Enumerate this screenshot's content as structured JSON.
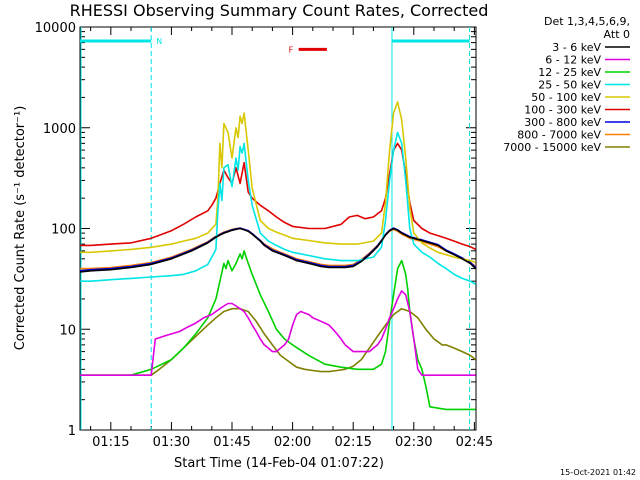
{
  "chart_data": {
    "type": "line",
    "title": "RHESSI Observing Summary Count Rates, Corrected",
    "xlabel": "Start Time (14-Feb-04 01:07:22)",
    "ylabel": "Corrected Count Rate (s⁻¹ detector⁻¹)",
    "y_scale": "log",
    "ylim": [
      1,
      10000
    ],
    "xlim_minutes": [
      67.37,
      165.4
    ],
    "x_tick_labels": [
      "01:15",
      "01:30",
      "01:45",
      "02:00",
      "02:15",
      "02:30",
      "02:45"
    ],
    "x_tick_minutes": [
      75,
      90,
      105,
      120,
      135,
      150,
      165
    ],
    "y_tick_labels": [
      "1",
      "10",
      "100",
      "1000",
      "10000"
    ],
    "y_tick_values": [
      1,
      10,
      100,
      1000,
      10000
    ],
    "legend_header": [
      "Det 1,3,4,5,6,9,",
      "Att 0"
    ],
    "legend_position": "right",
    "annotations": {
      "night_marker": "N",
      "flare_marker": "F",
      "night_color": "#00e5e5",
      "flare_color": "#e00000",
      "night_bars_minutes": [
        [
          67.37,
          85.0
        ],
        [
          144.6,
          163.8
        ]
      ],
      "night_boundaries_minutes": [
        85.0,
        144.6,
        163.8
      ],
      "flare_bar_minutes": [
        121.5,
        128.5
      ],
      "flare_bar_y": 6000
    },
    "series": [
      {
        "name": "3 - 6 keV",
        "color": "#000000",
        "x": [
          67.4,
          70,
          75,
          80,
          85,
          90,
          95,
          99,
          101,
          102,
          103,
          104,
          105,
          106,
          107,
          108,
          109,
          110,
          112,
          113,
          115,
          117,
          119,
          121,
          123,
          125,
          127,
          129,
          131,
          133,
          135,
          137,
          139,
          141,
          142,
          143,
          144,
          145,
          146,
          147,
          148,
          149,
          150,
          152,
          154,
          156,
          158,
          160,
          162,
          164,
          165.3
        ],
        "y": [
          37,
          38,
          39,
          41,
          44,
          50,
          60,
          72,
          82,
          86,
          90,
          93,
          96,
          98,
          100,
          97,
          94,
          88,
          75,
          68,
          60,
          56,
          52,
          48,
          46,
          44,
          42,
          41,
          41,
          41,
          42,
          47,
          55,
          66,
          75,
          86,
          95,
          100,
          96,
          90,
          86,
          82,
          80,
          76,
          72,
          68,
          60,
          55,
          50,
          45,
          40
        ]
      },
      {
        "name": "6 - 12 keV",
        "color": "#e000e0",
        "x": [
          67.4,
          70,
          75,
          80,
          85,
          86,
          88,
          90,
          92,
          94,
          96,
          98,
          100,
          101,
          102,
          103,
          104,
          105,
          106,
          107,
          108,
          109,
          110,
          111,
          112,
          113,
          114,
          115,
          116,
          117,
          118,
          119,
          120,
          121,
          122,
          123,
          124,
          125,
          126,
          127,
          128,
          129,
          130,
          131,
          132,
          133,
          134,
          135,
          136,
          137,
          138,
          139,
          140,
          141,
          142,
          143,
          144,
          145,
          146,
          147,
          148,
          149,
          150,
          151,
          152,
          153,
          154,
          156,
          158,
          160,
          162,
          164,
          165.3
        ],
        "y": [
          3.5,
          3.5,
          3.5,
          3.5,
          3.5,
          8,
          8.5,
          9,
          9.5,
          10.5,
          11.5,
          13,
          14,
          15,
          16,
          17,
          18,
          18,
          17,
          16,
          15,
          13,
          11,
          9.5,
          8,
          7,
          6.5,
          6,
          6,
          6.5,
          7,
          8,
          11,
          14,
          15,
          14.5,
          14,
          13,
          12.5,
          12,
          11.5,
          11,
          10,
          9,
          8,
          7,
          6.5,
          6,
          6,
          6,
          6,
          6,
          6.5,
          7,
          8,
          10,
          13,
          16,
          20,
          24,
          22,
          15,
          8,
          4,
          3.5,
          3.5,
          3.5,
          3.5,
          3.5,
          3.5,
          3.5,
          3.5,
          3.5
        ]
      },
      {
        "name": "12 - 25 keV",
        "color": "#00d000",
        "x": [
          67.4,
          70,
          75,
          80,
          85,
          90,
          93,
          96,
          99,
          101,
          102,
          103,
          103.5,
          104,
          105,
          106,
          107,
          107.5,
          108,
          109,
          110,
          112,
          114,
          116,
          118,
          120,
          124,
          128,
          132,
          136,
          140,
          142,
          143,
          144,
          145,
          146,
          147,
          148,
          148.5,
          149,
          150,
          151,
          152,
          153,
          154,
          158,
          162,
          165.3
        ],
        "y": [
          3.5,
          3.5,
          3.5,
          3.5,
          4,
          5,
          6.5,
          9,
          13,
          20,
          30,
          45,
          40,
          48,
          38,
          45,
          56,
          50,
          60,
          45,
          35,
          22,
          15,
          10,
          8,
          7,
          5.5,
          4.5,
          4.2,
          4,
          4,
          4.5,
          6,
          12,
          22,
          40,
          48,
          35,
          25,
          15,
          8,
          5,
          4,
          2.7,
          1.7,
          1.6,
          1.6,
          1.6
        ]
      },
      {
        "name": "25 - 50 keV",
        "color": "#00e5e5",
        "x": [
          67.4,
          70,
          75,
          80,
          85,
          90,
          93,
          96,
          99,
          100,
          101,
          101.5,
          102,
          102.5,
          103,
          104,
          105,
          106,
          106.5,
          107,
          107.5,
          108,
          109,
          110,
          112,
          114,
          116,
          118,
          120,
          124,
          128,
          132,
          136,
          140,
          142,
          143,
          144,
          145,
          146,
          147,
          148,
          149,
          150,
          152,
          154,
          156,
          158,
          160,
          162,
          164,
          165.3
        ],
        "y": [
          30,
          30,
          31,
          32,
          33,
          34,
          35,
          38,
          44,
          52,
          62,
          150,
          280,
          190,
          400,
          430,
          260,
          500,
          380,
          650,
          560,
          700,
          300,
          170,
          90,
          75,
          68,
          62,
          58,
          54,
          50,
          48,
          48,
          52,
          65,
          120,
          300,
          600,
          900,
          700,
          300,
          100,
          70,
          58,
          52,
          45,
          40,
          35,
          32,
          30,
          28
        ]
      },
      {
        "name": "50 - 100 keV",
        "color": "#d8c800",
        "x": [
          67.4,
          70,
          75,
          80,
          85,
          90,
          93,
          96,
          99,
          100,
          101,
          101.5,
          102,
          102.5,
          103,
          104,
          105,
          106,
          106.5,
          107,
          107.5,
          108,
          109,
          110,
          112,
          114,
          116,
          118,
          120,
          124,
          128,
          132,
          136,
          140,
          142,
          143,
          144,
          145,
          146,
          147,
          148,
          149,
          150,
          152,
          154,
          156,
          158,
          160,
          162,
          164,
          165.3
        ],
        "y": [
          58,
          58,
          60,
          62,
          65,
          70,
          75,
          80,
          90,
          100,
          110,
          200,
          700,
          400,
          1100,
          900,
          500,
          1000,
          800,
          1300,
          1100,
          1400,
          600,
          250,
          120,
          100,
          92,
          86,
          80,
          76,
          72,
          70,
          70,
          75,
          90,
          180,
          600,
          1400,
          1800,
          1200,
          500,
          160,
          90,
          72,
          64,
          58,
          55,
          52,
          50,
          48,
          46
        ]
      },
      {
        "name": "100 - 300 keV",
        "color": "#e00000",
        "x": [
          67.4,
          70,
          75,
          80,
          85,
          90,
          93,
          96,
          99,
          100,
          101,
          102,
          103,
          104,
          105,
          106,
          107,
          108,
          109,
          110,
          112,
          114,
          116,
          118,
          120,
          124,
          128,
          132,
          134,
          136,
          138,
          140,
          142,
          143,
          144,
          145,
          146,
          147,
          148,
          149,
          150,
          152,
          154,
          156,
          158,
          160,
          162,
          164,
          165.3
        ],
        "y": [
          68,
          68,
          70,
          72,
          80,
          95,
          110,
          130,
          150,
          170,
          200,
          280,
          380,
          320,
          280,
          400,
          280,
          450,
          230,
          200,
          170,
          150,
          130,
          115,
          105,
          100,
          100,
          110,
          130,
          135,
          125,
          130,
          150,
          200,
          350,
          600,
          700,
          600,
          350,
          180,
          120,
          100,
          90,
          85,
          80,
          75,
          70,
          66,
          62
        ]
      },
      {
        "name": "300 - 800 keV",
        "color": "#0000e0",
        "x": [
          67.4,
          70,
          75,
          80,
          85,
          90,
          95,
          99,
          101,
          102,
          103,
          104,
          105,
          106,
          107,
          108,
          109,
          110,
          112,
          113,
          115,
          117,
          119,
          121,
          123,
          125,
          127,
          129,
          131,
          133,
          135,
          137,
          139,
          141,
          142,
          143,
          144,
          145,
          146,
          147,
          148,
          149,
          150,
          152,
          154,
          156,
          158,
          160,
          162,
          164,
          165.3
        ],
        "y": [
          38,
          39,
          40,
          42,
          45,
          51,
          61,
          73,
          83,
          87,
          91,
          94,
          97,
          99,
          101,
          98,
          95,
          89,
          76,
          69,
          61,
          57,
          53,
          49,
          47,
          45,
          43,
          42,
          42,
          42,
          43,
          48,
          56,
          67,
          76,
          87,
          96,
          101,
          97,
          91,
          87,
          83,
          81,
          77,
          73,
          69,
          61,
          56,
          51,
          46,
          41
        ]
      },
      {
        "name": "800 - 7000 keV",
        "color": "#ff8000",
        "x": [
          67.4,
          70,
          75,
          80,
          85,
          90,
          95,
          99,
          101,
          102,
          103,
          104,
          105,
          106,
          107,
          108,
          109,
          110,
          112,
          113,
          115,
          117,
          119,
          121,
          123,
          125,
          127,
          129,
          131,
          133,
          135,
          137,
          139,
          141,
          142,
          143,
          144,
          145,
          146,
          147,
          148,
          149,
          150,
          152,
          154,
          156,
          158,
          160,
          162,
          164,
          165.3
        ],
        "y": [
          40,
          40,
          41,
          43,
          46,
          52,
          62,
          74,
          84,
          88,
          92,
          95,
          98,
          100,
          101,
          98,
          94,
          88,
          76,
          70,
          63,
          58,
          54,
          50,
          48,
          46,
          44,
          43,
          43,
          43,
          44,
          49,
          57,
          68,
          76,
          86,
          94,
          98,
          94,
          88,
          84,
          80,
          78,
          74,
          70,
          66,
          60,
          55,
          50,
          46,
          42
        ]
      },
      {
        "name": "7000 - 15000 keV",
        "color": "#808000",
        "x": [
          67.4,
          70,
          75,
          80,
          85,
          87,
          90,
          93,
          96,
          99,
          101,
          103,
          105,
          107,
          109,
          111,
          113,
          115,
          117,
          119,
          121,
          123,
          125,
          127,
          129,
          131,
          133,
          135,
          137,
          139,
          141,
          143,
          145,
          147,
          149,
          151,
          153,
          155,
          156,
          157,
          158,
          160,
          162,
          164,
          165.3
        ],
        "y": [
          3.5,
          3.5,
          3.5,
          3.5,
          3.5,
          4,
          5,
          6.5,
          8.5,
          11,
          13,
          15,
          16,
          16,
          15,
          12,
          9,
          7,
          5.5,
          4.8,
          4.2,
          4,
          3.9,
          3.8,
          3.8,
          3.9,
          4,
          4.3,
          5,
          6.5,
          8.5,
          11,
          14,
          16,
          15,
          13,
          10,
          8,
          7.5,
          7,
          7,
          6.5,
          6,
          5.5,
          5
        ]
      }
    ]
  },
  "footer": {
    "timestamp": "15-Oct-2021 01:42"
  }
}
